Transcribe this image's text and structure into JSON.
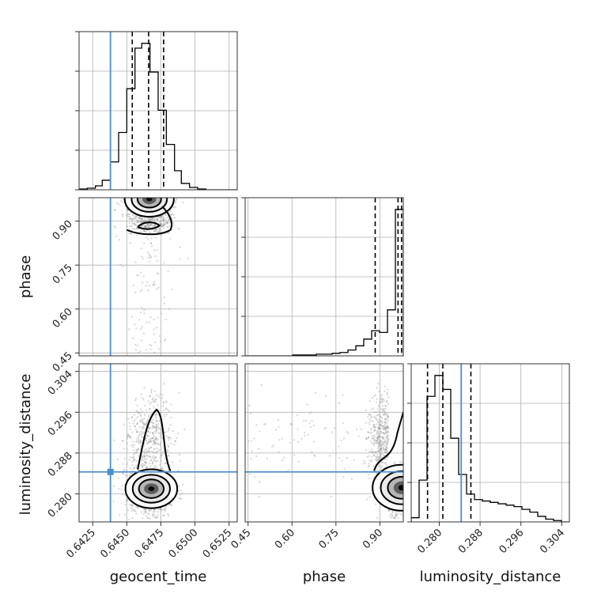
{
  "chart_data": {
    "type": "corner",
    "parameters": [
      "geocent_time",
      "phase",
      "luminosity_distance"
    ],
    "axis_labels": {
      "geocent_time": "geocent_time",
      "phase": "phase",
      "luminosity_distance": "luminosity_distance"
    },
    "ranges": {
      "geocent_time": [
        0.6415,
        0.6531
      ],
      "phase": [
        0.44,
        0.98
      ],
      "luminosity_distance": [
        0.2745,
        0.3055
      ]
    },
    "ticks": {
      "geocent_time": [
        "0.6425",
        "0.6450",
        "0.6475",
        "0.6500",
        "0.6525"
      ],
      "phase": [
        "0.45",
        "0.60",
        "0.75",
        "0.90"
      ],
      "luminosity_distance": [
        "0.280",
        "0.288",
        "0.296",
        "0.304"
      ]
    },
    "truth": {
      "geocent_time": 0.6438,
      "luminosity_distance": 0.2843
    },
    "quantiles": {
      "geocent_time": [
        0.6454,
        0.6466,
        0.6477
      ],
      "phase": [
        0.884,
        0.962,
        0.974
      ],
      "luminosity_distance": [
        0.2777,
        0.2807,
        0.2862
      ]
    },
    "histograms": {
      "geocent_time": {
        "edges": [
          0.6415,
          0.6421,
          0.6427,
          0.6432,
          0.6438,
          0.6444,
          0.645,
          0.6456,
          0.6461,
          0.6467,
          0.6473,
          0.6479,
          0.6485,
          0.649,
          0.6496,
          0.6502,
          0.6508,
          0.6514,
          0.6519,
          0.6525,
          0.6531
        ],
        "counts": [
          1,
          2,
          5,
          12,
          35,
          72,
          127,
          178,
          184,
          148,
          100,
          57,
          24,
          8,
          3,
          1,
          0,
          0,
          0,
          0
        ]
      },
      "phase": {
        "edges": [
          0.44,
          0.467,
          0.494,
          0.521,
          0.548,
          0.575,
          0.602,
          0.629,
          0.656,
          0.683,
          0.71,
          0.737,
          0.764,
          0.791,
          0.818,
          0.845,
          0.872,
          0.899,
          0.926,
          0.953,
          0.98
        ],
        "counts": [
          0,
          0,
          0,
          0,
          0,
          0,
          1,
          1,
          1,
          2,
          2,
          3,
          4,
          7,
          12,
          20,
          30,
          28,
          55,
          175
        ]
      },
      "luminosity_distance": {
        "edges": [
          0.2745,
          0.27605,
          0.2776,
          0.27915,
          0.2807,
          0.28225,
          0.2838,
          0.28535,
          0.2869,
          0.28845,
          0.29,
          0.29155,
          0.2931,
          0.29465,
          0.2962,
          0.29775,
          0.2993,
          0.30085,
          0.3024,
          0.30395,
          0.3055
        ],
        "counts": [
          3,
          30,
          90,
          105,
          95,
          60,
          34,
          20,
          16,
          15,
          14,
          13,
          12,
          11,
          9,
          7,
          4,
          2,
          1,
          0
        ]
      }
    }
  }
}
